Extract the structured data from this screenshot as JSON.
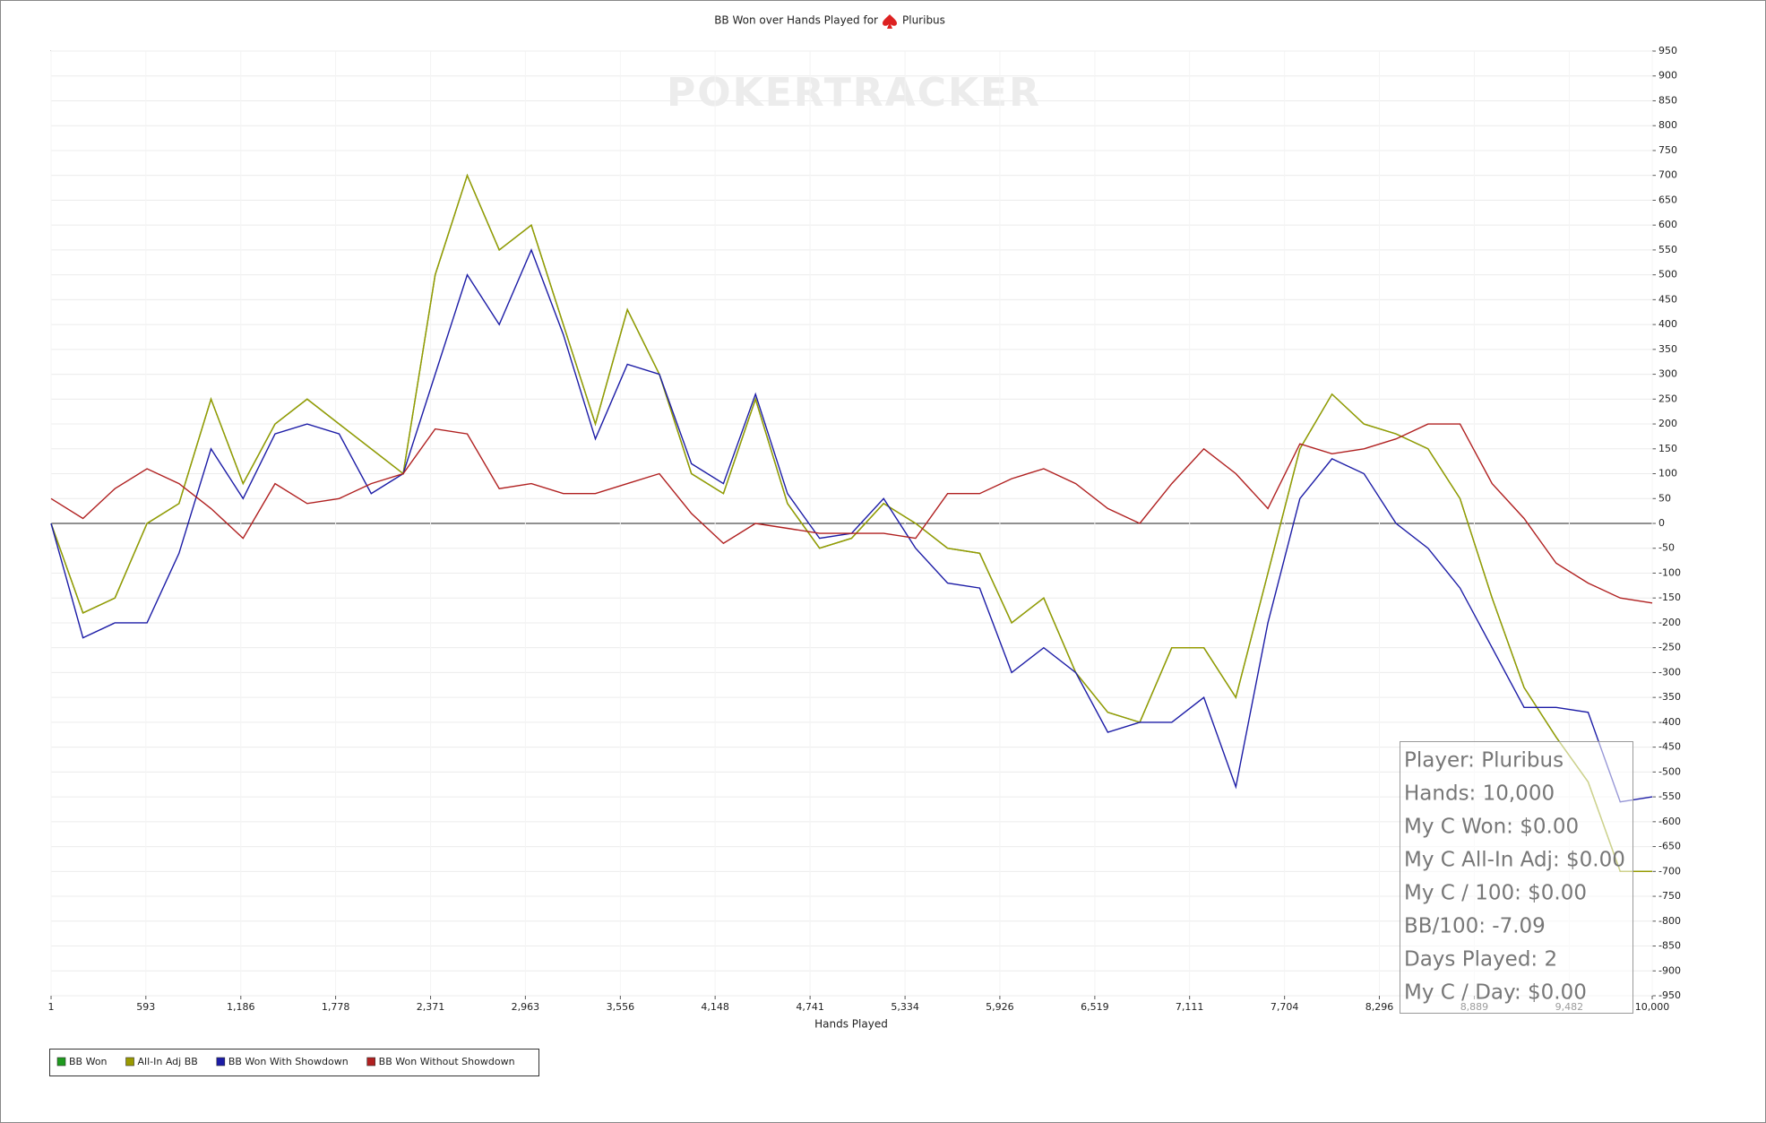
{
  "chart_data": {
    "type": "line",
    "title": "BB Won over Hands Played for",
    "player": "Pluribus",
    "watermark": "POKERTRACKER",
    "xlabel": "Hands Played",
    "xlim": [
      1,
      10000
    ],
    "xticks": [
      1,
      593,
      {
        "value": 1186,
        "label": "1,186"
      },
      {
        "value": 1778,
        "label": "1,778"
      },
      {
        "value": 2371,
        "label": "2,371"
      },
      {
        "value": 2963,
        "label": "2,963"
      },
      {
        "value": 3556,
        "label": "3,556"
      },
      {
        "value": 4148,
        "label": "4,148"
      },
      {
        "value": 4741,
        "label": "4,741"
      },
      {
        "value": 5334,
        "label": "5,334"
      },
      {
        "value": 5926,
        "label": "5,926"
      },
      {
        "value": 6519,
        "label": "6,519"
      },
      {
        "value": 7111,
        "label": "7,111"
      },
      {
        "value": 7704,
        "label": "7,704"
      },
      {
        "value": 8296,
        "label": "8,296"
      },
      {
        "value": 8889,
        "label": "8,889"
      },
      {
        "value": 9482,
        "label": "9,482"
      },
      {
        "value": 10000,
        "label": "10,000"
      }
    ],
    "ylim": [
      -950,
      950
    ],
    "yticks": [
      -950,
      -900,
      -850,
      -800,
      -750,
      -700,
      -650,
      -600,
      -550,
      -500,
      -450,
      -400,
      -350,
      -300,
      -250,
      -200,
      -150,
      -100,
      -50,
      0,
      50,
      100,
      150,
      200,
      250,
      300,
      350,
      400,
      450,
      500,
      550,
      600,
      650,
      700,
      750,
      800,
      850,
      900,
      950
    ],
    "grid": true,
    "legend": "bottom-left",
    "x": [
      1,
      200,
      400,
      600,
      800,
      1000,
      1200,
      1400,
      1600,
      1800,
      2000,
      2200,
      2400,
      2600,
      2800,
      3000,
      3200,
      3400,
      3600,
      3800,
      4000,
      4200,
      4400,
      4600,
      4800,
      5000,
      5200,
      5400,
      5600,
      5800,
      6000,
      6200,
      6400,
      6600,
      6800,
      7000,
      7200,
      7400,
      7600,
      7800,
      8000,
      8200,
      8400,
      8600,
      8800,
      9000,
      9200,
      9400,
      9600,
      9800,
      10000
    ],
    "series": [
      {
        "name": "BB Won",
        "color": "#1e9a1e",
        "values": [
          0,
          -180,
          -150,
          0,
          40,
          250,
          80,
          200,
          250,
          200,
          150,
          100,
          500,
          700,
          550,
          600,
          400,
          200,
          430,
          300,
          100,
          60,
          250,
          40,
          -50,
          -30,
          40,
          0,
          -50,
          -60,
          -200,
          -150,
          -300,
          -380,
          -400,
          -250,
          -250,
          -350,
          -100,
          150,
          260,
          200,
          180,
          150,
          50,
          -150,
          -330,
          -430,
          -520,
          -700,
          -700
        ]
      },
      {
        "name": "All-In Adj BB",
        "color": "#9a9a00",
        "values": [
          0,
          -180,
          -150,
          0,
          40,
          250,
          80,
          200,
          250,
          200,
          150,
          100,
          500,
          700,
          550,
          600,
          400,
          200,
          430,
          300,
          100,
          60,
          250,
          40,
          -50,
          -30,
          40,
          0,
          -50,
          -60,
          -200,
          -150,
          -300,
          -380,
          -400,
          -250,
          -250,
          -350,
          -100,
          150,
          260,
          200,
          180,
          150,
          50,
          -150,
          -330,
          -430,
          -520,
          -700,
          -700
        ]
      },
      {
        "name": "BB Won With Showdown",
        "color": "#1c1ca6",
        "values": [
          0,
          -230,
          -200,
          -200,
          -60,
          150,
          50,
          180,
          200,
          180,
          60,
          100,
          300,
          500,
          400,
          550,
          380,
          170,
          320,
          300,
          120,
          80,
          260,
          60,
          -30,
          -20,
          50,
          -50,
          -120,
          -130,
          -300,
          -250,
          -300,
          -420,
          -400,
          -400,
          -350,
          -530,
          -200,
          50,
          130,
          100,
          0,
          -50,
          -130,
          -250,
          -370,
          -370,
          -380,
          -560,
          -550
        ]
      },
      {
        "name": "BB Won Without Showdown",
        "color": "#b02020",
        "values": [
          50,
          10,
          70,
          110,
          80,
          30,
          -30,
          80,
          40,
          50,
          80,
          100,
          190,
          180,
          70,
          80,
          60,
          60,
          80,
          100,
          20,
          -40,
          0,
          -10,
          -20,
          -20,
          -20,
          -30,
          60,
          60,
          90,
          110,
          80,
          30,
          0,
          80,
          150,
          100,
          30,
          160,
          140,
          150,
          170,
          200,
          200,
          80,
          10,
          -80,
          -120,
          -150,
          -160
        ]
      }
    ],
    "tooltip": [
      "Player: Pluribus",
      "Hands: 10,000",
      "My C Won: $0.00",
      "My C All-In Adj: $0.00",
      "My C / 100: $0.00",
      "BB/100: -7.09",
      "Days Played: 2",
      "My C / Day: $0.00"
    ]
  }
}
